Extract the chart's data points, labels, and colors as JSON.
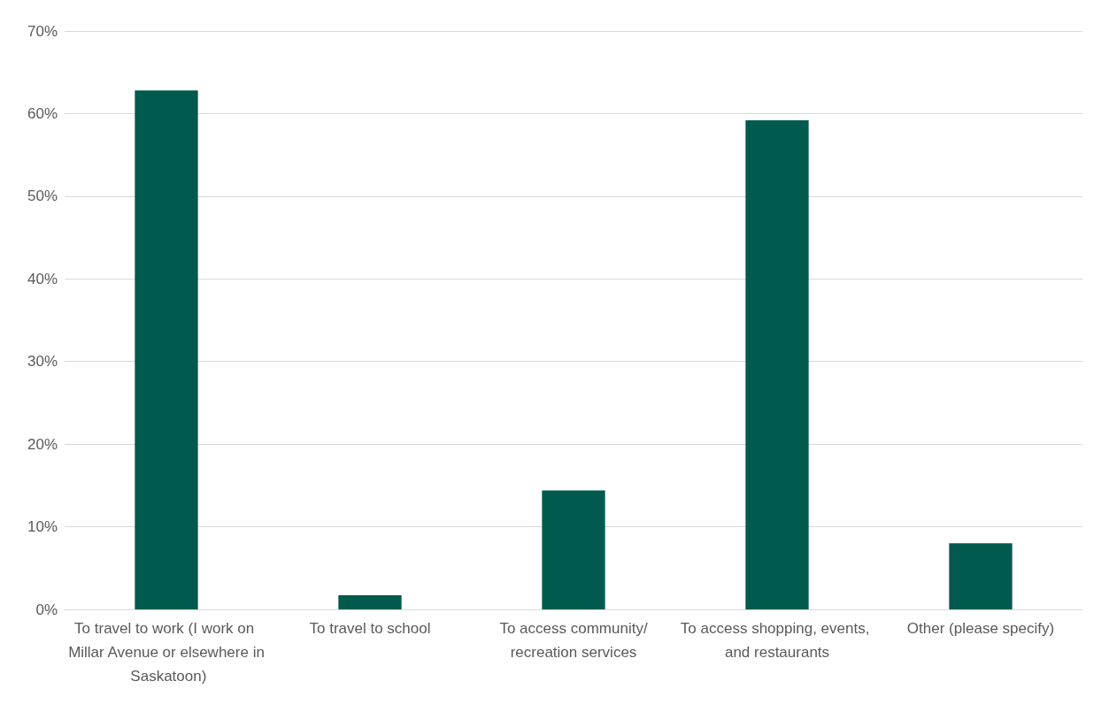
{
  "chart_data": {
    "type": "bar",
    "categories": [
      "To travel to work (I work on Millar Avenue or elsewhere in Saskatoon)",
      "To travel to school",
      "To access community/recreation services",
      "To access shopping, events, and restaurants",
      "Other (please specify)"
    ],
    "values": [
      62.8,
      1.7,
      14.4,
      59.2,
      8.0
    ],
    "color": "#005a4e",
    "ylim": [
      0,
      70
    ],
    "yticks": [
      {
        "value": 0,
        "label": "0%"
      },
      {
        "value": 10,
        "label": "10%"
      },
      {
        "value": 20,
        "label": "20%"
      },
      {
        "value": 30,
        "label": "30%"
      },
      {
        "value": 40,
        "label": "40%"
      },
      {
        "value": 50,
        "label": "50%"
      },
      {
        "value": 60,
        "label": "60%"
      },
      {
        "value": 70,
        "label": "70%"
      }
    ],
    "grid": "y"
  }
}
